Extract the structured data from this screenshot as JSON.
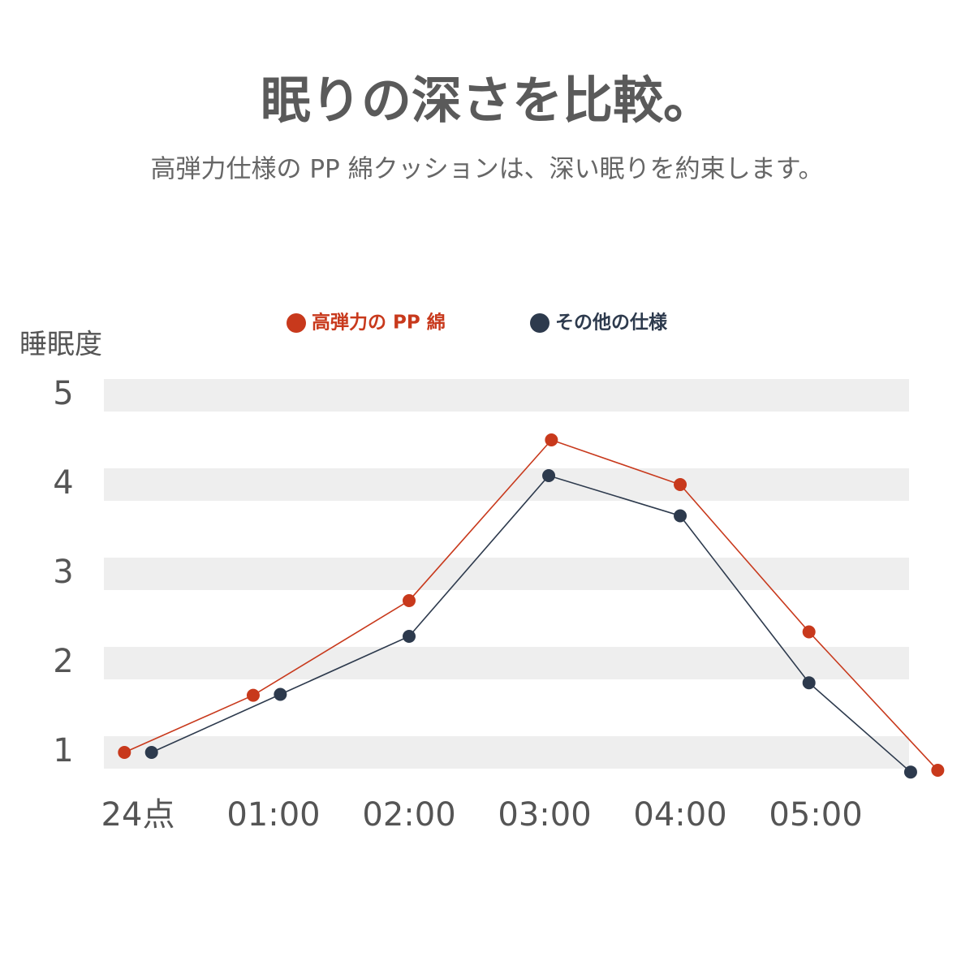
{
  "chart_data": {
    "type": "line",
    "title": "眠りの深さを比較。",
    "subtitle": "高弾力仕様の PP 綿クッションは、深い眠りを約束します。",
    "y_label": "睡眠度",
    "xlim": [
      -0.25,
      6.1
    ],
    "xticks": [
      {
        "value": 0,
        "label": "24点"
      },
      {
        "value": 1,
        "label": "01:00"
      },
      {
        "value": 2,
        "label": "02:00"
      },
      {
        "value": 3,
        "label": "03:00"
      },
      {
        "value": 4,
        "label": "04:00"
      },
      {
        "value": 5,
        "label": "05:00"
      }
    ],
    "ylim": [
      0.6,
      5.4
    ],
    "yticks": [
      1,
      2,
      3,
      4,
      5
    ],
    "grid": true,
    "series": [
      {
        "name": "高弾力の PP 綿",
        "color": "#c8391c",
        "x": [
          -0.1,
          0.85,
          2.0,
          3.05,
          4.0,
          4.95,
          5.9
        ],
        "values": [
          1.0,
          1.64,
          2.7,
          4.5,
          4.0,
          2.35,
          0.8
        ]
      },
      {
        "name": "その他の仕様",
        "color": "#2d3a4d",
        "x": [
          0.1,
          1.05,
          2.0,
          3.03,
          4.0,
          4.95,
          5.7
        ],
        "values": [
          1.0,
          1.65,
          2.3,
          4.1,
          3.65,
          1.78,
          0.78
        ]
      }
    ]
  }
}
